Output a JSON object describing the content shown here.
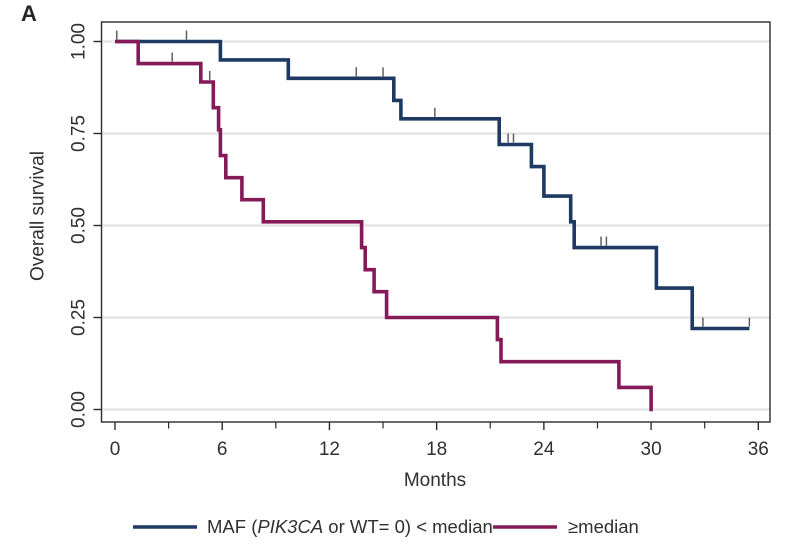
{
  "panel_label": "A",
  "y_axis": {
    "title": "Overall survival",
    "ticks": [
      "1.00",
      "0.75",
      "0.50",
      "0.25",
      "0.00"
    ],
    "tick_values": [
      1.0,
      0.75,
      0.5,
      0.25,
      0.0
    ]
  },
  "x_axis": {
    "title": "Months",
    "ticks": [
      "0",
      "6",
      "12",
      "18",
      "24",
      "30",
      "36"
    ],
    "tick_values": [
      0,
      6,
      12,
      18,
      24,
      30,
      36
    ],
    "minor_tick_values": [
      3,
      9,
      15,
      21,
      27,
      33
    ],
    "range": [
      0,
      36
    ]
  },
  "legend": [
    {
      "label_prefix": "MAF (",
      "label_italic": "PIK3CA",
      "label_suffix": " or WT= 0) < median",
      "color": "#1e3a63"
    },
    {
      "label": "≥median",
      "color": "#861a58"
    }
  ],
  "colors": {
    "series_low": "#1e3a63",
    "series_high": "#861a58",
    "axis": "#2b2b2b",
    "gridline": "#e3e3e3",
    "censor": "#5e5e5e",
    "text": "#303030"
  },
  "chart_data": {
    "type": "line",
    "subtype": "kaplan-meier-step",
    "title": "",
    "xlabel": "Months",
    "ylabel": "Overall survival",
    "xlim": [
      0,
      36
    ],
    "ylim": [
      0.0,
      1.0
    ],
    "grid": true,
    "legend_position": "bottom",
    "series": [
      {
        "name": "MAF (PIK3CA or WT= 0) < median",
        "color": "#1e3a63",
        "steps": [
          [
            0,
            1.0
          ],
          [
            5.9,
            0.95
          ],
          [
            9.7,
            0.9
          ],
          [
            15.6,
            0.84
          ],
          [
            16.0,
            0.79
          ],
          [
            21.5,
            0.72
          ],
          [
            23.3,
            0.66
          ],
          [
            24.0,
            0.58
          ],
          [
            25.5,
            0.51
          ],
          [
            25.7,
            0.44
          ],
          [
            30.3,
            0.33
          ],
          [
            32.3,
            0.22
          ]
        ],
        "end_time": 35.5,
        "censor_marks": [
          [
            0.1,
            1.0
          ],
          [
            4.0,
            1.0
          ],
          [
            13.5,
            0.9
          ],
          [
            15.0,
            0.9
          ],
          [
            17.9,
            0.79
          ],
          [
            22.0,
            0.72
          ],
          [
            22.3,
            0.72
          ],
          [
            27.2,
            0.44
          ],
          [
            27.5,
            0.44
          ],
          [
            32.9,
            0.22
          ],
          [
            35.5,
            0.22
          ]
        ]
      },
      {
        "name": "≥median",
        "color": "#861a58",
        "steps": [
          [
            0,
            1.0
          ],
          [
            1.3,
            0.94
          ],
          [
            4.8,
            0.89
          ],
          [
            5.5,
            0.82
          ],
          [
            5.8,
            0.76
          ],
          [
            5.9,
            0.69
          ],
          [
            6.2,
            0.63
          ],
          [
            7.1,
            0.57
          ],
          [
            8.3,
            0.51
          ],
          [
            13.8,
            0.44
          ],
          [
            14.0,
            0.38
          ],
          [
            14.5,
            0.32
          ],
          [
            15.2,
            0.25
          ],
          [
            21.4,
            0.19
          ],
          [
            21.6,
            0.13
          ],
          [
            28.2,
            0.06
          ],
          [
            30.0,
            0.0
          ]
        ],
        "end_time": 30.1,
        "censor_marks": [
          [
            3.2,
            0.94
          ],
          [
            5.3,
            0.89
          ]
        ]
      }
    ]
  }
}
